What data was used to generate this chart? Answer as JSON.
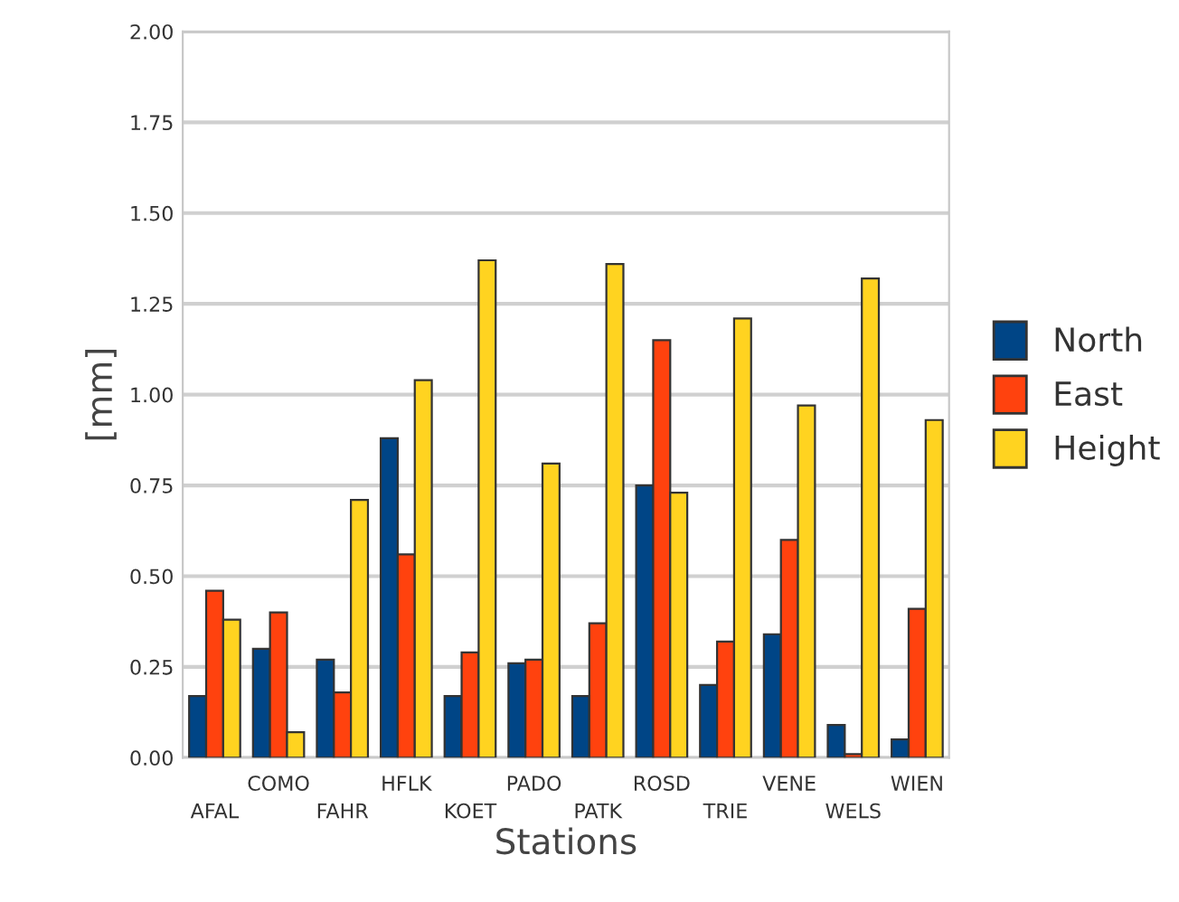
{
  "chart_data": {
    "type": "bar",
    "xlabel": "Stations",
    "ylabel": "[mm]",
    "categories": [
      "AFAL",
      "COMO",
      "FAHR",
      "HFLK",
      "KOET",
      "PADO",
      "PATK",
      "ROSD",
      "TRIE",
      "VENE",
      "WELS",
      "WIEN"
    ],
    "series": [
      {
        "name": "North",
        "color": "#004586",
        "values": [
          0.17,
          0.3,
          0.27,
          0.88,
          0.17,
          0.26,
          0.17,
          0.75,
          0.2,
          0.34,
          0.09,
          0.05
        ]
      },
      {
        "name": "East",
        "color": "#ff420e",
        "values": [
          0.46,
          0.4,
          0.18,
          0.56,
          0.29,
          0.27,
          0.37,
          1.15,
          0.32,
          0.6,
          0.01,
          0.41
        ]
      },
      {
        "name": "Height",
        "color": "#ffd320",
        "values": [
          0.38,
          0.07,
          0.71,
          1.04,
          1.37,
          0.81,
          1.36,
          0.73,
          1.21,
          0.97,
          1.32,
          0.93
        ]
      }
    ],
    "ylim": [
      0,
      2
    ],
    "yticks": [
      {
        "value": 0,
        "label": "0.00"
      },
      {
        "value": 0.25,
        "label": "0.25"
      },
      {
        "value": 0.5,
        "label": "0.50"
      },
      {
        "value": 0.75,
        "label": "0.75"
      },
      {
        "value": 1,
        "label": "1.00"
      },
      {
        "value": 1.25,
        "label": "1.25"
      },
      {
        "value": 1.5,
        "label": "1.50"
      },
      {
        "value": 1.75,
        "label": "1.75"
      },
      {
        "value": 2,
        "label": "2.00"
      }
    ],
    "grid": "y",
    "legend": "right"
  }
}
